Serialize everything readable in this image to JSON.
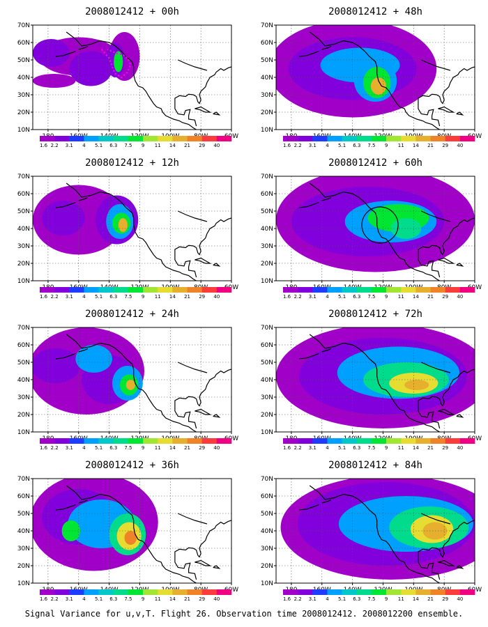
{
  "caption": "Signal Variance for u,v,T. Flight 26. Observation time 2008012412. 2008012200 ensemble.",
  "axes": {
    "x_ticks": [
      "180",
      "160W",
      "140W",
      "120W",
      "100W",
      "80W",
      "60W"
    ],
    "y_ticks": [
      "10N",
      "20N",
      "30N",
      "40N",
      "50N",
      "60N",
      "70N"
    ],
    "lon_range": [
      -190,
      -60
    ],
    "lat_range": [
      10,
      70
    ],
    "grid": "dotted"
  },
  "colorbar": {
    "labels": [
      "1.6",
      "2.2",
      "3.1",
      "4",
      "5.1",
      "6.3",
      "7.5",
      "9",
      "11",
      "14",
      "21",
      "29",
      "40"
    ],
    "colors": [
      "#a000c8",
      "#8200dc",
      "#1e3cff",
      "#00a0ff",
      "#00c8c8",
      "#00dc8c",
      "#00e632",
      "#a0e632",
      "#e6dc32",
      "#e6af2d",
      "#f08228",
      "#fa3c3c",
      "#f00082"
    ]
  },
  "chart_data": [
    {
      "type": "heatmap",
      "title": "2008012412 + 00h",
      "forecast_hour": 0,
      "annotation": "dotted flight track"
    },
    {
      "type": "heatmap",
      "title": "2008012412 + 12h",
      "forecast_hour": 12
    },
    {
      "type": "heatmap",
      "title": "2008012412 + 24h",
      "forecast_hour": 24
    },
    {
      "type": "heatmap",
      "title": "2008012412 + 36h",
      "forecast_hour": 36
    },
    {
      "type": "heatmap",
      "title": "2008012412 + 48h",
      "forecast_hour": 48
    },
    {
      "type": "heatmap",
      "title": "2008012412 + 60h",
      "forecast_hour": 60,
      "annotation": "circle"
    },
    {
      "type": "heatmap",
      "title": "2008012412 + 72h",
      "forecast_hour": 72
    },
    {
      "type": "heatmap",
      "title": "2008012412 + 84h",
      "forecast_hour": 84
    }
  ]
}
